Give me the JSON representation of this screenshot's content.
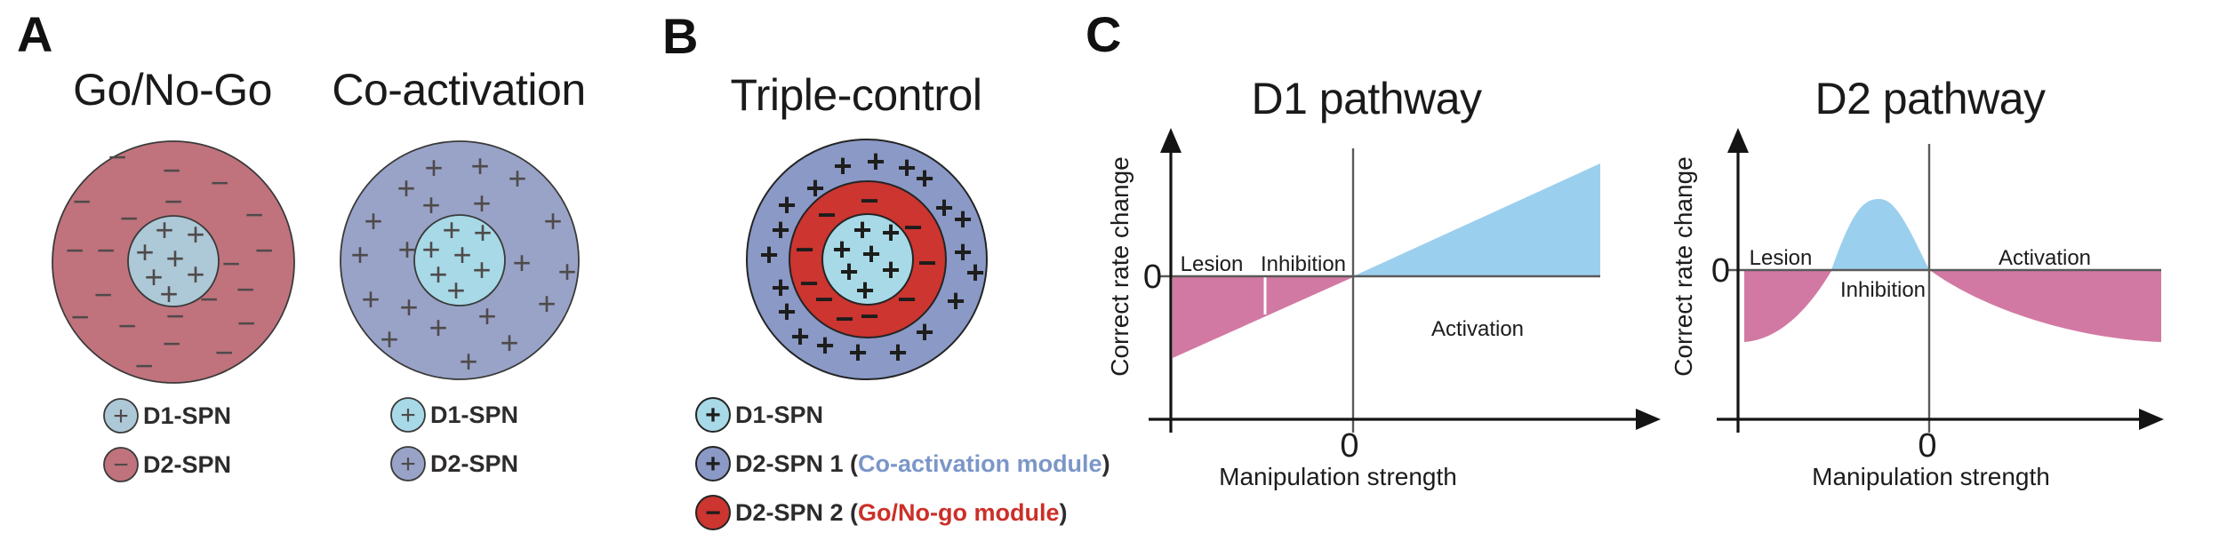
{
  "figure": {
    "background": "#ffffff"
  },
  "symbols": {
    "plus": "+",
    "minus": "−"
  },
  "colors": {
    "rose": "#c0737d",
    "light_blue_gray": "#adc8d6",
    "slate_blue": "#98a3c7",
    "slate_blue_dark": "#8a99c6",
    "light_cyan": "#a7d9e7",
    "ring_red": "#cc3530",
    "plot_pink": "#d279a3",
    "plot_blue": "#9bcfee",
    "module_blue_text": "#7b96c8",
    "module_red_text": "#cc2f28",
    "sign_gray": "#4f4a4a",
    "sign_black": "#1d1d1b"
  },
  "panels": {
    "a": {
      "label": "A",
      "diagrams": [
        {
          "title": "Go/No-Go",
          "rings": [
            {
              "region": "outer",
              "cell": "D2-SPN",
              "sign": "minus"
            },
            {
              "region": "inner",
              "cell": "D1-SPN",
              "sign": "plus"
            }
          ],
          "legend": [
            {
              "symbol": "plus",
              "label": "D1-SPN"
            },
            {
              "symbol": "minus",
              "label": "D2-SPN"
            }
          ]
        },
        {
          "title": "Co-activation",
          "rings": [
            {
              "region": "outer",
              "cell": "D2-SPN",
              "sign": "plus"
            },
            {
              "region": "inner",
              "cell": "D1-SPN",
              "sign": "plus"
            }
          ],
          "legend": [
            {
              "symbol": "plus",
              "label": "D1-SPN"
            },
            {
              "symbol": "plus",
              "label": "D2-SPN"
            }
          ]
        }
      ]
    },
    "b": {
      "label": "B",
      "title": "Triple-control",
      "rings": [
        {
          "region": "outer",
          "cell": "D2-SPN 1",
          "sign": "plus"
        },
        {
          "region": "middle",
          "cell": "D2-SPN 2",
          "sign": "minus"
        },
        {
          "region": "inner",
          "cell": "D1-SPN",
          "sign": "plus"
        }
      ],
      "legend": [
        {
          "symbol": "plus",
          "pre": "D1-SPN",
          "module": "",
          "post": ""
        },
        {
          "symbol": "plus",
          "pre": "D2-SPN 1 (",
          "module": "Co-activation module",
          "post": ")"
        },
        {
          "symbol": "minus",
          "pre": "D2-SPN 2 (",
          "module": "Go/No-go module",
          "post": ")"
        }
      ]
    },
    "c": {
      "label": "C"
    }
  },
  "signs": {
    "gonogo_outer": {
      "glyph": "minus",
      "cls": "sign-a",
      "positions": [
        [
          132,
          178
        ],
        [
          193,
          193
        ],
        [
          247,
          207
        ],
        [
          92,
          228
        ],
        [
          195,
          228
        ],
        [
          286,
          243
        ],
        [
          145,
          247
        ],
        [
          84,
          283
        ],
        [
          119,
          283
        ],
        [
          297,
          283
        ],
        [
          260,
          298
        ],
        [
          276,
          327
        ],
        [
          116,
          333
        ],
        [
          235,
          338
        ],
        [
          90,
          358
        ],
        [
          197,
          357
        ],
        [
          277,
          365
        ],
        [
          143,
          368
        ],
        [
          193,
          388
        ],
        [
          252,
          398
        ],
        [
          162,
          413
        ]
      ]
    },
    "gonogo_inner": {
      "glyph": "plus",
      "cls": "sign-a",
      "positions": [
        [
          185,
          260
        ],
        [
          220,
          265
        ],
        [
          163,
          285
        ],
        [
          197,
          292
        ],
        [
          173,
          313
        ],
        [
          220,
          310
        ],
        [
          190,
          332
        ]
      ]
    },
    "coact_outer": {
      "glyph": "plus",
      "cls": "sign-a",
      "positions": [
        [
          488,
          190
        ],
        [
          540,
          188
        ],
        [
          582,
          202
        ],
        [
          457,
          213
        ],
        [
          485,
          232
        ],
        [
          542,
          230
        ],
        [
          420,
          250
        ],
        [
          622,
          250
        ],
        [
          405,
          288
        ],
        [
          458,
          282
        ],
        [
          587,
          297
        ],
        [
          638,
          307
        ],
        [
          417,
          338
        ],
        [
          460,
          347
        ],
        [
          548,
          357
        ],
        [
          615,
          343
        ],
        [
          438,
          383
        ],
        [
          493,
          370
        ],
        [
          573,
          387
        ],
        [
          527,
          408
        ]
      ]
    },
    "coact_inner": {
      "glyph": "plus",
      "cls": "sign-a",
      "positions": [
        [
          508,
          260
        ],
        [
          543,
          263
        ],
        [
          485,
          282
        ],
        [
          520,
          288
        ],
        [
          493,
          310
        ],
        [
          542,
          305
        ],
        [
          513,
          328
        ]
      ]
    },
    "triple_outer": {
      "glyph": "plus",
      "cls": "sign-b",
      "positions": [
        [
          948,
          188
        ],
        [
          985,
          183
        ],
        [
          1020,
          190
        ],
        [
          1040,
          202
        ],
        [
          917,
          213
        ],
        [
          885,
          232
        ],
        [
          1062,
          235
        ],
        [
          1083,
          248
        ],
        [
          878,
          260
        ],
        [
          865,
          288
        ],
        [
          1083,
          285
        ],
        [
          1097,
          308
        ],
        [
          878,
          325
        ],
        [
          1075,
          340
        ],
        [
          885,
          352
        ],
        [
          900,
          380
        ],
        [
          928,
          390
        ],
        [
          1040,
          375
        ],
        [
          965,
          398
        ],
        [
          1010,
          398
        ]
      ]
    },
    "triple_mid": {
      "glyph": "minus",
      "cls": "sign-b",
      "positions": [
        [
          978,
          227
        ],
        [
          930,
          243
        ],
        [
          1027,
          257
        ],
        [
          905,
          282
        ],
        [
          1043,
          297
        ],
        [
          910,
          320
        ],
        [
          927,
          338
        ],
        [
          1020,
          338
        ],
        [
          950,
          360
        ],
        [
          978,
          357
        ]
      ]
    },
    "triple_inner": {
      "glyph": "plus",
      "cls": "sign-b",
      "positions": [
        [
          970,
          260
        ],
        [
          1002,
          263
        ],
        [
          947,
          282
        ],
        [
          980,
          287
        ],
        [
          955,
          307
        ],
        [
          1002,
          305
        ],
        [
          973,
          328
        ]
      ]
    }
  },
  "chart_data": [
    {
      "type": "area",
      "title": "D1 pathway",
      "xlabel": "Manipulation strength",
      "ylabel": "Correct rate change",
      "x_tick_labels": [
        "0"
      ],
      "y_tick_labels": [
        "0"
      ],
      "grid": false,
      "legend_position": "none",
      "regions": [
        {
          "label": "Lesion",
          "sign": "negative",
          "fill": "plot_pink",
          "x_range": [
            -1,
            -0.5
          ]
        },
        {
          "label": "Inhibition",
          "sign": "negative",
          "fill": "plot_pink",
          "x_range": [
            -0.5,
            0
          ]
        },
        {
          "label": "Activation",
          "sign": "positive",
          "fill": "plot_blue",
          "x_range": [
            0,
            1.4
          ]
        }
      ],
      "relationship": "monotonic increasing, approximately linear through the origin",
      "curve_points": [
        [
          -1,
          -0.72
        ],
        [
          0,
          0
        ],
        [
          1.4,
          1
        ]
      ]
    },
    {
      "type": "area",
      "title": "D2 pathway",
      "xlabel": "Manipulation strength",
      "ylabel": "Correct rate change",
      "x_tick_labels": [
        "0"
      ],
      "y_tick_labels": [
        "0"
      ],
      "grid": false,
      "legend_position": "none",
      "regions": [
        {
          "label": "Lesion",
          "sign": "negative",
          "fill": "plot_pink",
          "x_range": [
            -1,
            -0.52
          ]
        },
        {
          "label": "Inhibition",
          "sign": "positive bump",
          "fill": "plot_blue",
          "x_range": [
            -0.52,
            0
          ]
        },
        {
          "label": "Activation",
          "sign": "negative",
          "fill": "plot_pink",
          "x_range": [
            0,
            1.25
          ]
        }
      ],
      "relationship": "non-monotonic: lesion decreases correct rate, moderate inhibition produces a positive bump peaking at mild suppression, activation decreases correct rate",
      "curve_points": [
        [
          -1,
          -0.63
        ],
        [
          -0.8,
          -0.55
        ],
        [
          -0.52,
          0
        ],
        [
          -0.26,
          0.6
        ],
        [
          0,
          0
        ],
        [
          0.2,
          -0.33
        ],
        [
          0.6,
          -0.55
        ],
        [
          1.25,
          -0.63
        ]
      ]
    }
  ]
}
